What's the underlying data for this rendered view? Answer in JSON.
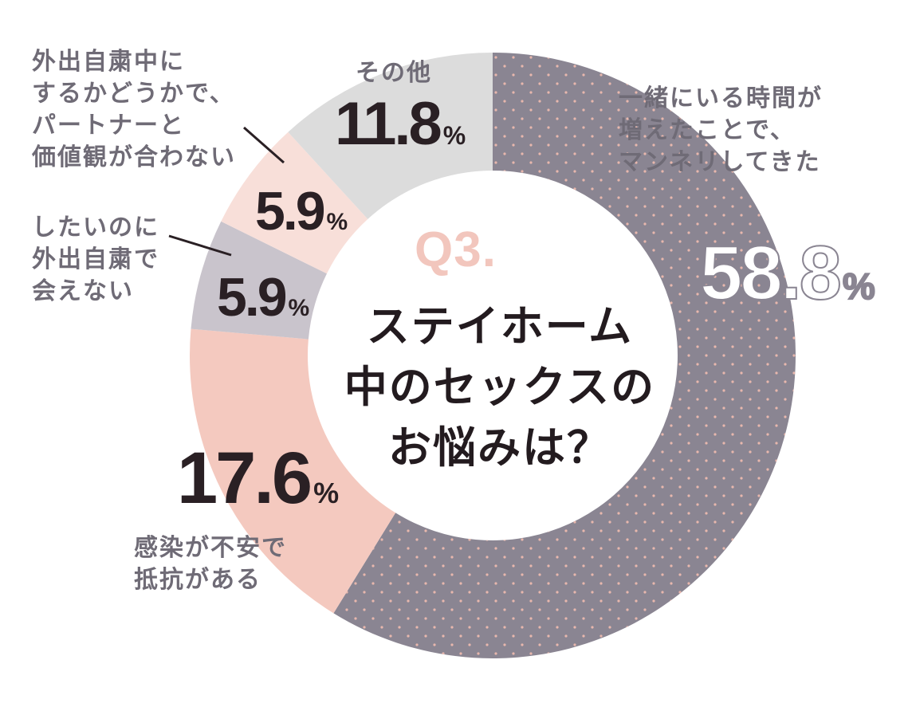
{
  "chart_data": {
    "type": "pie",
    "style": "donut",
    "center": {
      "question_no": "Q3.",
      "title": "ステイホーム\n中のセックスの\nお悩みは？"
    },
    "unit": "%",
    "slices": [
      {
        "label": "一緒にいる時間が\n増えたことで、\nマンネリしてきた",
        "value": 58.8,
        "display": "58.8",
        "color": "#8a8592"
      },
      {
        "label": "感染が不安で\n抵抗がある",
        "value": 17.6,
        "display": "17.6",
        "color": "#f4c9bf"
      },
      {
        "label": "したいのに\n外出自粛で\n会えない",
        "value": 5.9,
        "display": "5.9",
        "color": "#c9c4cc"
      },
      {
        "label": "外出自粛中に\nするかどうかで、\nパートナーと\n価値観が合わない",
        "value": 5.9,
        "display": "5.9",
        "color": "#f8dfd9"
      },
      {
        "label": "その他",
        "value": 11.8,
        "display": "11.8",
        "color": "#dcdcdc"
      }
    ]
  }
}
